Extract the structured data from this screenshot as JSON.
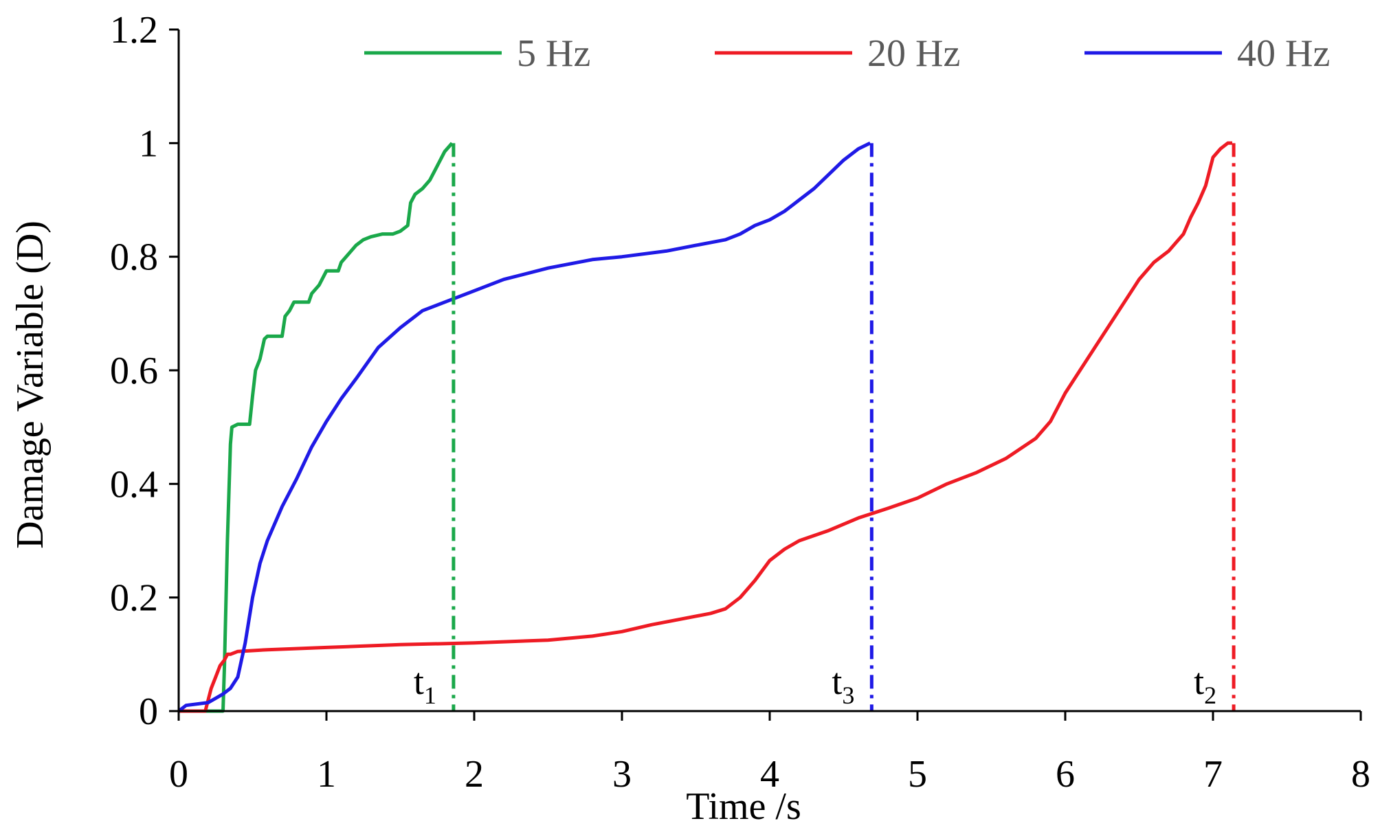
{
  "chart_data": {
    "type": "line",
    "title": "",
    "xlabel": "Time /s",
    "ylabel": "Damage Variable (D)",
    "xlim": [
      0,
      8
    ],
    "ylim": [
      0,
      1.2
    ],
    "xticks": [
      "0",
      "1",
      "2",
      "3",
      "4",
      "5",
      "6",
      "7",
      "8"
    ],
    "yticks": [
      "0",
      "0.2",
      "0.4",
      "0.6",
      "0.8",
      "1",
      "1.2"
    ],
    "grid": false,
    "legend_position": "top",
    "series": [
      {
        "name": "5 Hz",
        "color": "#1aa84a",
        "x": [
          0,
          0.3,
          0.31,
          0.33,
          0.35,
          0.36,
          0.4,
          0.48,
          0.5,
          0.52,
          0.55,
          0.58,
          0.6,
          0.7,
          0.72,
          0.75,
          0.78,
          0.88,
          0.9,
          0.95,
          0.98,
          1.0,
          1.08,
          1.1,
          1.15,
          1.2,
          1.25,
          1.3,
          1.38,
          1.45,
          1.5,
          1.55,
          1.57,
          1.6,
          1.65,
          1.7,
          1.75,
          1.8,
          1.85
        ],
        "y": [
          0,
          0,
          0.08,
          0.3,
          0.47,
          0.5,
          0.505,
          0.505,
          0.555,
          0.6,
          0.62,
          0.655,
          0.66,
          0.66,
          0.695,
          0.705,
          0.72,
          0.72,
          0.735,
          0.75,
          0.765,
          0.775,
          0.775,
          0.79,
          0.805,
          0.82,
          0.83,
          0.835,
          0.84,
          0.84,
          0.845,
          0.855,
          0.895,
          0.91,
          0.92,
          0.935,
          0.96,
          0.985,
          1.0
        ]
      },
      {
        "name": "20 Hz",
        "color": "#ee1b24",
        "x": [
          0,
          0.18,
          0.22,
          0.25,
          0.28,
          0.31,
          0.33,
          0.35,
          0.4,
          0.6,
          1.0,
          1.5,
          2.0,
          2.5,
          2.8,
          3.0,
          3.2,
          3.4,
          3.6,
          3.7,
          3.8,
          3.9,
          4.0,
          4.1,
          4.2,
          4.4,
          4.6,
          4.8,
          5.0,
          5.2,
          5.4,
          5.6,
          5.8,
          5.9,
          6.0,
          6.1,
          6.2,
          6.3,
          6.35,
          6.4,
          6.5,
          6.6,
          6.7,
          6.8,
          6.85,
          6.9,
          6.95,
          7.0,
          7.05,
          7.1,
          7.13
        ],
        "y": [
          0,
          0,
          0.04,
          0.06,
          0.08,
          0.09,
          0.1,
          0.1,
          0.105,
          0.108,
          0.112,
          0.117,
          0.12,
          0.125,
          0.132,
          0.14,
          0.152,
          0.162,
          0.172,
          0.18,
          0.2,
          0.23,
          0.265,
          0.285,
          0.3,
          0.318,
          0.34,
          0.357,
          0.375,
          0.4,
          0.42,
          0.445,
          0.48,
          0.51,
          0.56,
          0.6,
          0.64,
          0.68,
          0.7,
          0.72,
          0.76,
          0.79,
          0.81,
          0.84,
          0.87,
          0.895,
          0.925,
          0.975,
          0.99,
          1.0,
          1.0
        ]
      },
      {
        "name": "40 Hz",
        "color": "#1f1ae6",
        "x": [
          0,
          0.05,
          0.2,
          0.3,
          0.35,
          0.4,
          0.45,
          0.5,
          0.55,
          0.6,
          0.7,
          0.8,
          0.9,
          1.0,
          1.1,
          1.2,
          1.35,
          1.5,
          1.65,
          1.8,
          2.0,
          2.2,
          2.5,
          2.8,
          3.0,
          3.3,
          3.5,
          3.7,
          3.8,
          3.9,
          4.0,
          4.1,
          4.2,
          4.3,
          4.4,
          4.5,
          4.6,
          4.68
        ],
        "y": [
          0,
          0.01,
          0.015,
          0.03,
          0.04,
          0.06,
          0.12,
          0.2,
          0.26,
          0.3,
          0.36,
          0.41,
          0.465,
          0.51,
          0.55,
          0.585,
          0.64,
          0.675,
          0.705,
          0.72,
          0.74,
          0.76,
          0.78,
          0.795,
          0.8,
          0.81,
          0.82,
          0.83,
          0.84,
          0.855,
          0.865,
          0.88,
          0.9,
          0.92,
          0.945,
          0.97,
          0.99,
          1.0
        ]
      }
    ],
    "markers": [
      {
        "label": "t",
        "sub": "1",
        "x": 1.86,
        "color": "#1aa84a"
      },
      {
        "label": "t",
        "sub": "3",
        "x": 4.69,
        "color": "#1f1ae6"
      },
      {
        "label": "t",
        "sub": "2",
        "x": 7.14,
        "color": "#ee1b24"
      }
    ]
  }
}
